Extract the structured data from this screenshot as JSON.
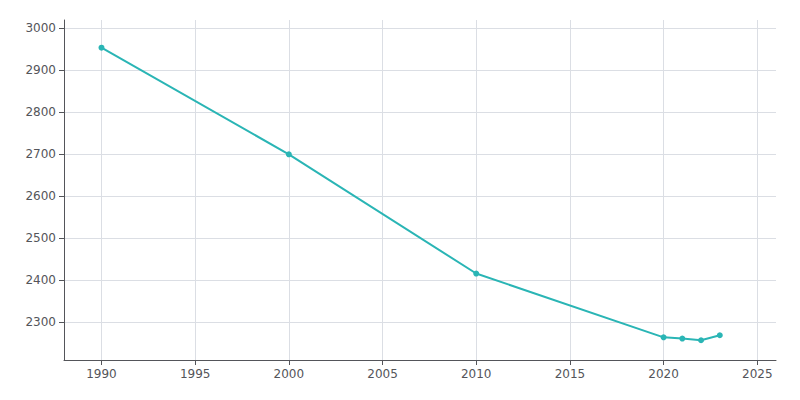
{
  "chart_data": {
    "type": "line",
    "x": [
      1990,
      2000,
      2010,
      2020,
      2021,
      2022,
      2023
    ],
    "values": [
      2954,
      2700,
      2416,
      2264,
      2261,
      2257,
      2269
    ],
    "color": "#2ab5b5",
    "marker": "circle",
    "xlim": [
      1988,
      2026
    ],
    "ylim": [
      2210,
      3020
    ],
    "xticks": [
      1990,
      1995,
      2000,
      2005,
      2010,
      2015,
      2020,
      2025
    ],
    "yticks": [
      2300,
      2400,
      2500,
      2600,
      2700,
      2800,
      2900,
      3000
    ],
    "grid": true
  }
}
